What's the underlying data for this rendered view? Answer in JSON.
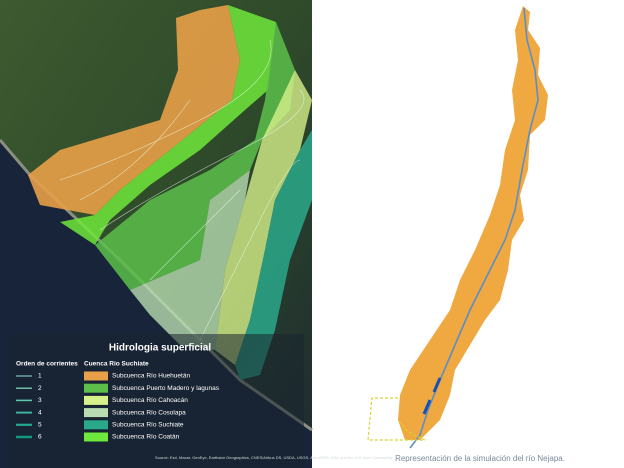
{
  "legend": {
    "title": "Hidrologia superficial",
    "stream_header": "Orden de corrientes",
    "basin_header": "Cuenca Rio Suchiate",
    "stream_orders": [
      "1",
      "2",
      "3",
      "4",
      "5",
      "6"
    ],
    "subbasins": [
      {
        "name": "Subcuenca Río Huehuetán",
        "color": "#e8a048"
      },
      {
        "name": "Subcuenca Puerto Madero y lagunas",
        "color": "#5cbf4a"
      },
      {
        "name": "Subcuenca Río Cahoacán",
        "color": "#d6f08a"
      },
      {
        "name": "Subcuenca Río Cosolapa",
        "color": "#b8dcb0"
      },
      {
        "name": "Subcuenca Río Suchiate",
        "color": "#2aa88a"
      },
      {
        "name": "Subcuenca Río Coatán",
        "color": "#6ee83a"
      }
    ]
  },
  "source": "Source: Esri, Maxar, GeoEye, Earthstar Geographics, CNES/Airbus DS, USDA, USGS, AeroGRID, IGN, and the GIS User Community",
  "caption": "Representación de la simulación del río Nejapa."
}
